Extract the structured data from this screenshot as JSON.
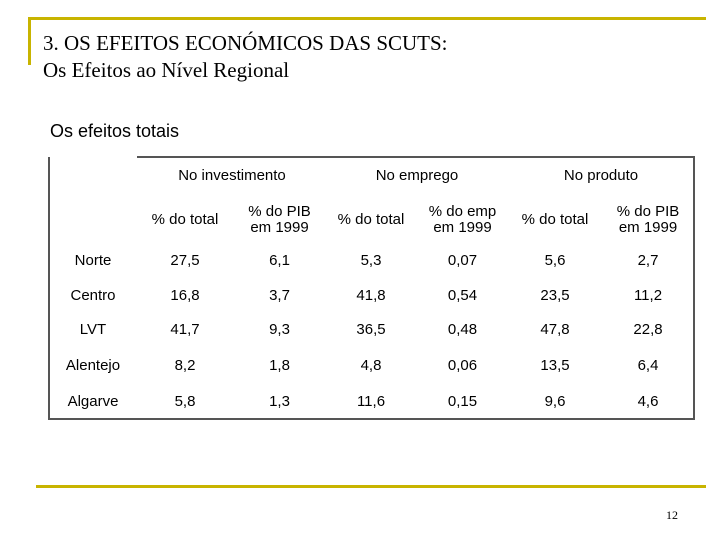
{
  "header": {
    "title_line1": "3. OS EFEITOS ECONÓMICOS DAS SCUTS:",
    "title_line2": "Os Efeitos ao Nível Regional"
  },
  "section_title": "Os efeitos totais",
  "table": {
    "groups": [
      "No investimento",
      "No emprego",
      "No produto"
    ],
    "subheaders": [
      [
        "% do total"
      ],
      [
        "% do PIB",
        "em 1999"
      ],
      [
        "% do total"
      ],
      [
        "% do emp",
        "em 1999"
      ],
      [
        "% do total"
      ],
      [
        "% do PIB",
        "em 1999"
      ]
    ],
    "rows": [
      {
        "region": "Norte",
        "values": [
          "27,5",
          "6,1",
          "5,3",
          "0,07",
          "5,6",
          "2,7"
        ]
      },
      {
        "region": "Centro",
        "values": [
          "16,8",
          "3,7",
          "41,8",
          "0,54",
          "23,5",
          "11,2"
        ]
      },
      {
        "region": "LVT",
        "values": [
          "41,7",
          "9,3",
          "36,5",
          "0,48",
          "47,8",
          "22,8"
        ]
      },
      {
        "region": "Alentejo",
        "values": [
          "8,2",
          "1,8",
          "4,8",
          "0,06",
          "13,5",
          "6,4"
        ]
      },
      {
        "region": "Algarve",
        "values": [
          "5,8",
          "1,3",
          "11,6",
          "0,15",
          "9,6",
          "4,6"
        ]
      }
    ]
  },
  "footer": {
    "page_number": "12"
  },
  "colors": {
    "accent_rule": "#c8b400",
    "table_border": "#555555"
  }
}
